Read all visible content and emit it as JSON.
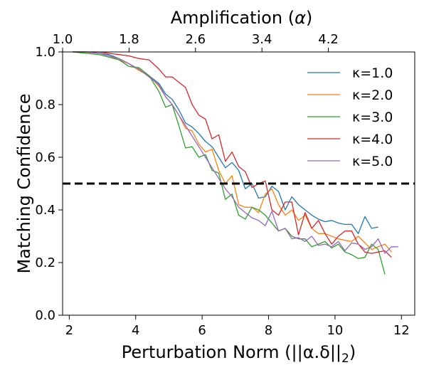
{
  "chart_data": {
    "type": "line",
    "xlabel": "Perturbation Norm (||α.δ||",
    "xlabel_sub": "2",
    "xlabel_close": ")",
    "ylabel": "Matching Confidence",
    "top_xlabel": "Amplification (",
    "top_xlabel_symbol": "α",
    "top_xlabel_close": ")",
    "xlim": [
      1.8,
      12.4
    ],
    "ylim": [
      0.0,
      1.0
    ],
    "x_ticks": [
      "2",
      "4",
      "6",
      "8",
      "10",
      "12"
    ],
    "y_ticks": [
      "0.0",
      "0.2",
      "0.4",
      "0.6",
      "0.8",
      "1.0"
    ],
    "top_ticks": [
      "1.0",
      "1.8",
      "2.6",
      "3.4",
      "4.2"
    ],
    "top_tick_positions_x": [
      1.8,
      3.8,
      5.8,
      7.8,
      9.8
    ],
    "threshold": 0.5,
    "legend_position": "upper right",
    "series": [
      {
        "name": "κ=1.0",
        "color": "#1f77b4",
        "points": [
          [
            2.1,
            1.0
          ],
          [
            2.5,
            1.0
          ],
          [
            2.9,
            0.995
          ],
          [
            3.2,
            0.99
          ],
          [
            3.5,
            0.975
          ],
          [
            3.8,
            0.955
          ],
          [
            4.1,
            0.93
          ],
          [
            4.4,
            0.91
          ],
          [
            4.7,
            0.88
          ],
          [
            4.9,
            0.84
          ],
          [
            5.1,
            0.82
          ],
          [
            5.3,
            0.78
          ],
          [
            5.5,
            0.73
          ],
          [
            5.7,
            0.715
          ],
          [
            5.9,
            0.69
          ],
          [
            6.1,
            0.66
          ],
          [
            6.3,
            0.64
          ],
          [
            6.5,
            0.6
          ],
          [
            6.7,
            0.56
          ],
          [
            6.9,
            0.58
          ],
          [
            7.1,
            0.55
          ],
          [
            7.3,
            0.48
          ],
          [
            7.5,
            0.5
          ],
          [
            7.7,
            0.445
          ],
          [
            7.9,
            0.45
          ],
          [
            8.1,
            0.49
          ],
          [
            8.3,
            0.47
          ],
          [
            8.5,
            0.4
          ],
          [
            8.7,
            0.45
          ],
          [
            8.9,
            0.42
          ],
          [
            9.1,
            0.4
          ],
          [
            9.3,
            0.38
          ],
          [
            9.5,
            0.365
          ],
          [
            9.7,
            0.355
          ],
          [
            9.9,
            0.36
          ],
          [
            10.1,
            0.35
          ],
          [
            10.3,
            0.345
          ],
          [
            10.5,
            0.345
          ],
          [
            10.7,
            0.31
          ],
          [
            10.9,
            0.375
          ],
          [
            11.1,
            0.33
          ],
          [
            11.3,
            0.335
          ]
        ]
      },
      {
        "name": "κ=2.0",
        "color": "#ff7f0e",
        "points": [
          [
            2.1,
            1.0
          ],
          [
            2.5,
            1.0
          ],
          [
            2.9,
            0.995
          ],
          [
            3.2,
            0.985
          ],
          [
            3.5,
            0.97
          ],
          [
            3.8,
            0.955
          ],
          [
            4.1,
            0.93
          ],
          [
            4.4,
            0.91
          ],
          [
            4.7,
            0.87
          ],
          [
            4.9,
            0.83
          ],
          [
            5.1,
            0.8
          ],
          [
            5.3,
            0.76
          ],
          [
            5.5,
            0.71
          ],
          [
            5.7,
            0.7
          ],
          [
            5.9,
            0.65
          ],
          [
            6.1,
            0.62
          ],
          [
            6.3,
            0.63
          ],
          [
            6.5,
            0.55
          ],
          [
            6.7,
            0.5
          ],
          [
            6.9,
            0.53
          ],
          [
            7.1,
            0.42
          ],
          [
            7.3,
            0.41
          ],
          [
            7.5,
            0.41
          ],
          [
            7.7,
            0.39
          ],
          [
            7.9,
            0.46
          ],
          [
            8.1,
            0.48
          ],
          [
            8.3,
            0.42
          ],
          [
            8.5,
            0.38
          ],
          [
            8.7,
            0.4
          ],
          [
            8.9,
            0.36
          ],
          [
            9.1,
            0.38
          ],
          [
            9.3,
            0.33
          ],
          [
            9.5,
            0.31
          ],
          [
            9.7,
            0.31
          ],
          [
            9.9,
            0.3
          ],
          [
            10.1,
            0.29
          ],
          [
            10.3,
            0.285
          ],
          [
            10.5,
            0.28
          ],
          [
            10.7,
            0.3
          ],
          [
            10.9,
            0.275
          ],
          [
            11.1,
            0.25
          ],
          [
            11.3,
            0.26
          ],
          [
            11.5,
            0.27
          ],
          [
            11.7,
            0.24
          ]
        ]
      },
      {
        "name": "κ=3.0",
        "color": "#2ca02c",
        "points": [
          [
            2.1,
            1.0
          ],
          [
            2.5,
            0.995
          ],
          [
            2.9,
            0.99
          ],
          [
            3.2,
            0.98
          ],
          [
            3.5,
            0.97
          ],
          [
            3.8,
            0.945
          ],
          [
            4.1,
            0.94
          ],
          [
            4.4,
            0.91
          ],
          [
            4.7,
            0.85
          ],
          [
            4.9,
            0.79
          ],
          [
            5.1,
            0.8
          ],
          [
            5.3,
            0.72
          ],
          [
            5.5,
            0.635
          ],
          [
            5.7,
            0.64
          ],
          [
            5.9,
            0.6
          ],
          [
            6.1,
            0.61
          ],
          [
            6.3,
            0.55
          ],
          [
            6.5,
            0.54
          ],
          [
            6.7,
            0.44
          ],
          [
            6.9,
            0.46
          ],
          [
            7.1,
            0.38
          ],
          [
            7.3,
            0.365
          ],
          [
            7.5,
            0.41
          ],
          [
            7.7,
            0.4
          ],
          [
            7.9,
            0.38
          ],
          [
            8.1,
            0.35
          ],
          [
            8.3,
            0.32
          ],
          [
            8.5,
            0.33
          ],
          [
            8.7,
            0.3
          ],
          [
            8.9,
            0.29
          ],
          [
            9.1,
            0.29
          ],
          [
            9.3,
            0.26
          ],
          [
            9.5,
            0.27
          ],
          [
            9.7,
            0.28
          ],
          [
            9.9,
            0.255
          ],
          [
            10.1,
            0.27
          ],
          [
            10.3,
            0.24
          ],
          [
            10.5,
            0.23
          ],
          [
            10.7,
            0.215
          ],
          [
            10.9,
            0.22
          ],
          [
            11.1,
            0.27
          ],
          [
            11.3,
            0.25
          ],
          [
            11.5,
            0.155
          ]
        ]
      },
      {
        "name": "κ=4.0",
        "color": "#d62728",
        "points": [
          [
            2.1,
            1.0
          ],
          [
            2.5,
            1.0
          ],
          [
            2.9,
            1.0
          ],
          [
            3.2,
            0.995
          ],
          [
            3.5,
            0.99
          ],
          [
            3.8,
            0.985
          ],
          [
            4.1,
            0.975
          ],
          [
            4.4,
            0.97
          ],
          [
            4.7,
            0.935
          ],
          [
            4.9,
            0.905
          ],
          [
            5.1,
            0.905
          ],
          [
            5.3,
            0.885
          ],
          [
            5.5,
            0.865
          ],
          [
            5.7,
            0.8
          ],
          [
            5.9,
            0.76
          ],
          [
            6.1,
            0.745
          ],
          [
            6.3,
            0.67
          ],
          [
            6.5,
            0.685
          ],
          [
            6.7,
            0.585
          ],
          [
            6.9,
            0.62
          ],
          [
            7.1,
            0.565
          ],
          [
            7.3,
            0.545
          ],
          [
            7.5,
            0.485
          ],
          [
            7.7,
            0.5
          ],
          [
            7.9,
            0.51
          ],
          [
            8.1,
            0.4
          ],
          [
            8.3,
            0.38
          ],
          [
            8.5,
            0.43
          ],
          [
            8.7,
            0.43
          ],
          [
            8.9,
            0.305
          ],
          [
            9.1,
            0.39
          ],
          [
            9.3,
            0.33
          ],
          [
            9.5,
            0.36
          ],
          [
            9.7,
            0.31
          ],
          [
            9.9,
            0.27
          ],
          [
            10.1,
            0.3
          ],
          [
            10.3,
            0.32
          ],
          [
            10.5,
            0.32
          ],
          [
            10.7,
            0.27
          ],
          [
            10.9,
            0.24
          ],
          [
            11.1,
            0.235
          ],
          [
            11.3,
            0.24
          ],
          [
            11.5,
            0.245
          ],
          [
            11.7,
            0.22
          ]
        ]
      },
      {
        "name": "κ=5.0",
        "color": "#9467bd",
        "points": [
          [
            2.1,
            1.0
          ],
          [
            2.5,
            1.0
          ],
          [
            2.9,
            0.995
          ],
          [
            3.2,
            0.985
          ],
          [
            3.5,
            0.975
          ],
          [
            3.8,
            0.955
          ],
          [
            4.1,
            0.935
          ],
          [
            4.4,
            0.905
          ],
          [
            4.7,
            0.875
          ],
          [
            4.9,
            0.83
          ],
          [
            5.1,
            0.8
          ],
          [
            5.3,
            0.76
          ],
          [
            5.5,
            0.72
          ],
          [
            5.7,
            0.68
          ],
          [
            5.9,
            0.64
          ],
          [
            6.1,
            0.6
          ],
          [
            6.3,
            0.56
          ],
          [
            6.5,
            0.52
          ],
          [
            6.7,
            0.48
          ],
          [
            6.9,
            0.45
          ],
          [
            7.1,
            0.41
          ],
          [
            7.3,
            0.39
          ],
          [
            7.5,
            0.37
          ],
          [
            7.7,
            0.36
          ],
          [
            7.9,
            0.34
          ],
          [
            8.1,
            0.395
          ],
          [
            8.3,
            0.32
          ],
          [
            8.5,
            0.33
          ],
          [
            8.7,
            0.29
          ],
          [
            8.9,
            0.295
          ],
          [
            9.1,
            0.28
          ],
          [
            9.3,
            0.3
          ],
          [
            9.5,
            0.265
          ],
          [
            9.7,
            0.27
          ],
          [
            9.9,
            0.26
          ],
          [
            10.1,
            0.28
          ],
          [
            10.3,
            0.245
          ],
          [
            10.5,
            0.275
          ],
          [
            10.7,
            0.27
          ],
          [
            10.9,
            0.25
          ],
          [
            11.1,
            0.26
          ],
          [
            11.3,
            0.29
          ],
          [
            11.5,
            0.235
          ],
          [
            11.7,
            0.26
          ],
          [
            11.9,
            0.26
          ]
        ]
      }
    ]
  }
}
